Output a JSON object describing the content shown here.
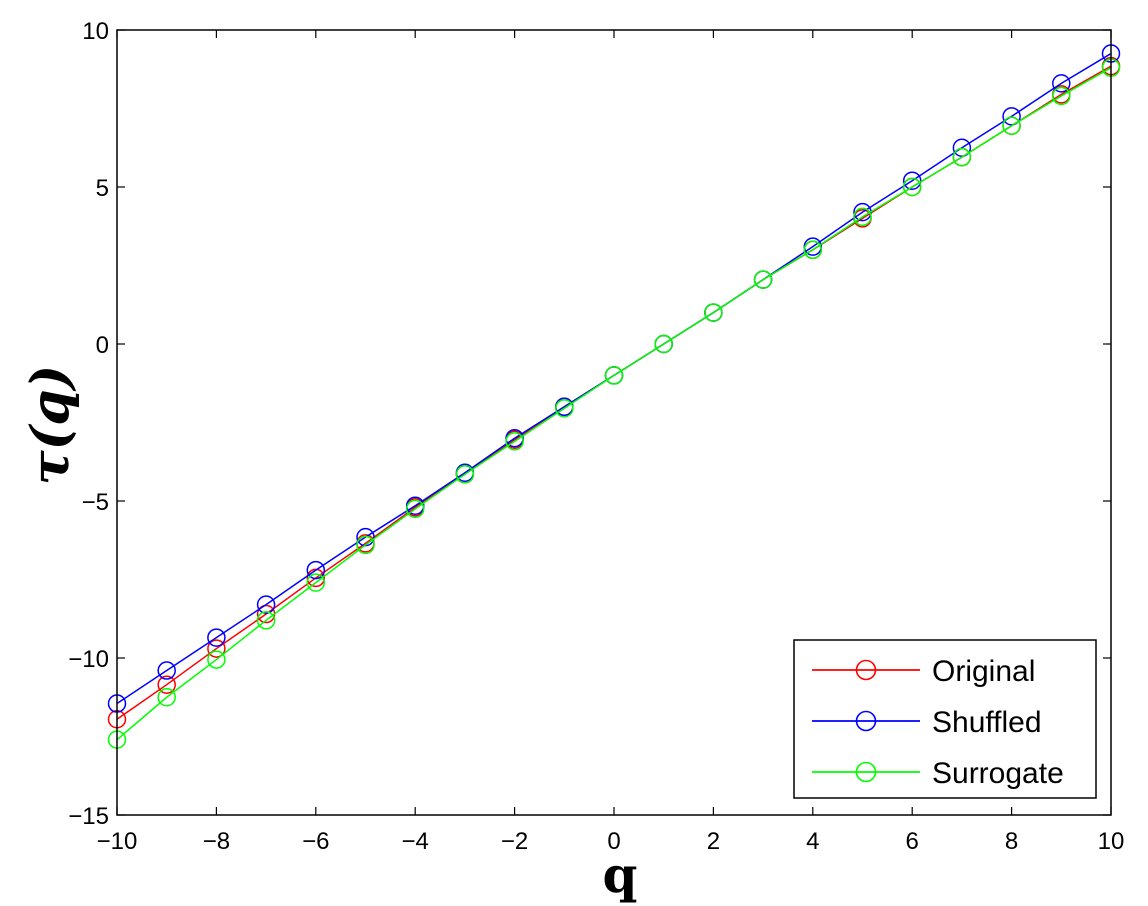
{
  "chart_data": {
    "type": "line",
    "title": "",
    "xlabel": "q",
    "ylabel": "τ(q)",
    "xlim": [
      -10,
      10
    ],
    "ylim": [
      -15,
      10
    ],
    "xticks": [
      -10,
      -8,
      -6,
      -4,
      -2,
      0,
      2,
      4,
      6,
      8,
      10
    ],
    "yticks": [
      -15,
      -10,
      -5,
      0,
      5,
      10
    ],
    "xtick_labels": [
      "−10",
      "−8",
      "−6",
      "−4",
      "−2",
      "0",
      "2",
      "4",
      "6",
      "8",
      "10"
    ],
    "ytick_labels": [
      "−15",
      "−10",
      "−5",
      "0",
      "5",
      "10"
    ],
    "grid": false,
    "legend_position": "bottom-right",
    "marker": "open-circle",
    "x": [
      -10,
      -9,
      -8,
      -7,
      -6,
      -5,
      -4,
      -3,
      -2,
      -1,
      0,
      1,
      2,
      3,
      4,
      5,
      6,
      7,
      8,
      9,
      10
    ],
    "series": [
      {
        "name": "Original",
        "color": "#ff0000",
        "values": [
          -11.95,
          -10.85,
          -9.7,
          -8.6,
          -7.45,
          -6.35,
          -5.2,
          -4.15,
          -3.05,
          -2.0,
          -1.0,
          0.0,
          1.0,
          2.05,
          3.0,
          4.0,
          5.0,
          5.95,
          6.95,
          7.95,
          8.85
        ]
      },
      {
        "name": "Shuffled",
        "color": "#0000ff",
        "values": [
          -11.45,
          -10.4,
          -9.35,
          -8.3,
          -7.2,
          -6.15,
          -5.15,
          -4.1,
          -3.0,
          -2.0,
          -1.0,
          0.0,
          1.0,
          2.05,
          3.1,
          4.2,
          5.2,
          6.25,
          7.25,
          8.3,
          9.25
        ]
      },
      {
        "name": "Surrogate",
        "color": "#00ff00",
        "values": [
          -12.6,
          -11.25,
          -10.05,
          -8.8,
          -7.6,
          -6.4,
          -5.25,
          -4.15,
          -3.1,
          -2.05,
          -1.0,
          0.0,
          1.0,
          2.05,
          3.0,
          4.05,
          5.0,
          5.95,
          6.95,
          7.9,
          8.8
        ]
      }
    ]
  }
}
